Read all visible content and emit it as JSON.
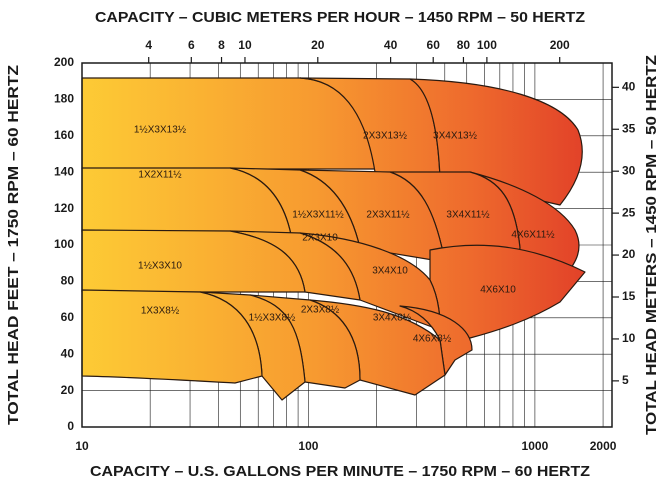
{
  "chart_data": {
    "type": "coverage",
    "x2_label": "CAPACITY – CUBIC METERS PER HOUR – 1450 RPM – 50 HERTZ",
    "x_label": "CAPACITY – U.S. GALLONS PER MINUTE – 1750 RPM – 60 HERTZ",
    "y_label": "TOTAL HEAD FEET – 1750 RPM – 60 HERTZ",
    "y2_label": "TOTAL HEAD METERS – 1450 RPM – 50 HERTZ",
    "x_scale": "log",
    "xlim": [
      10,
      2190
    ],
    "xticks": [
      10,
      100,
      1000,
      2000
    ],
    "x_gridlines": [
      20,
      30,
      40,
      50,
      60,
      70,
      80,
      90,
      200,
      300,
      400,
      500,
      600,
      700,
      800,
      900
    ],
    "x2lim": [
      2.12,
      329
    ],
    "x2ticks": [
      4,
      6,
      8,
      10,
      20,
      40,
      60,
      80,
      100,
      200
    ],
    "ylim": [
      0,
      200
    ],
    "yticks": [
      0,
      20,
      40,
      60,
      80,
      100,
      120,
      140,
      160,
      180,
      200
    ],
    "y2lim": [
      -0.5,
      42.9
    ],
    "y2ticks": [
      5,
      10,
      15,
      20,
      25,
      30,
      35,
      40
    ],
    "grid": true,
    "regions": [
      "1½X3X13½",
      "2X3X13½",
      "3X4X13½",
      "1X2X11½",
      "1½X3X11½",
      "2X3X11½",
      "3X4X11½",
      "4X6X11½",
      "1½X3X10",
      "2X3X10",
      "3X4X10",
      "4X6X10",
      "1X3X8½",
      "1½X3X8½",
      "2X3X8½",
      "3X4X8½",
      "4X6X8½"
    ]
  }
}
